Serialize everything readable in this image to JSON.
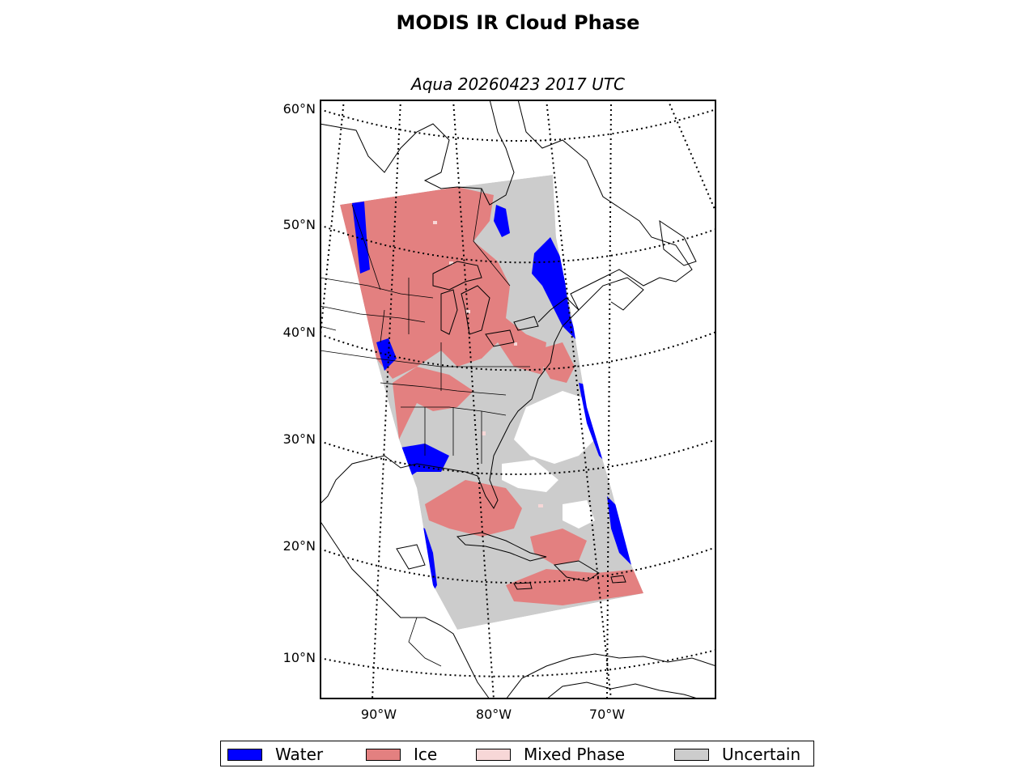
{
  "title": "MODIS IR Cloud Phase",
  "subtitle": "Aqua 20260423 2017 UTC",
  "lat_labels": [
    "60°N",
    "50°N",
    "40°N",
    "30°N",
    "20°N",
    "10°N"
  ],
  "lon_labels": [
    "90°W",
    "80°W",
    "70°W"
  ],
  "legend": [
    {
      "label": "Water",
      "color": "#0000ff"
    },
    {
      "label": "Ice",
      "color": "#e38080"
    },
    {
      "label": "Mixed Phase",
      "color": "#f7d7d7"
    },
    {
      "label": "Uncertain",
      "color": "#cccccc"
    }
  ],
  "colors": {
    "frame": "#000000",
    "background": "#ffffff"
  }
}
